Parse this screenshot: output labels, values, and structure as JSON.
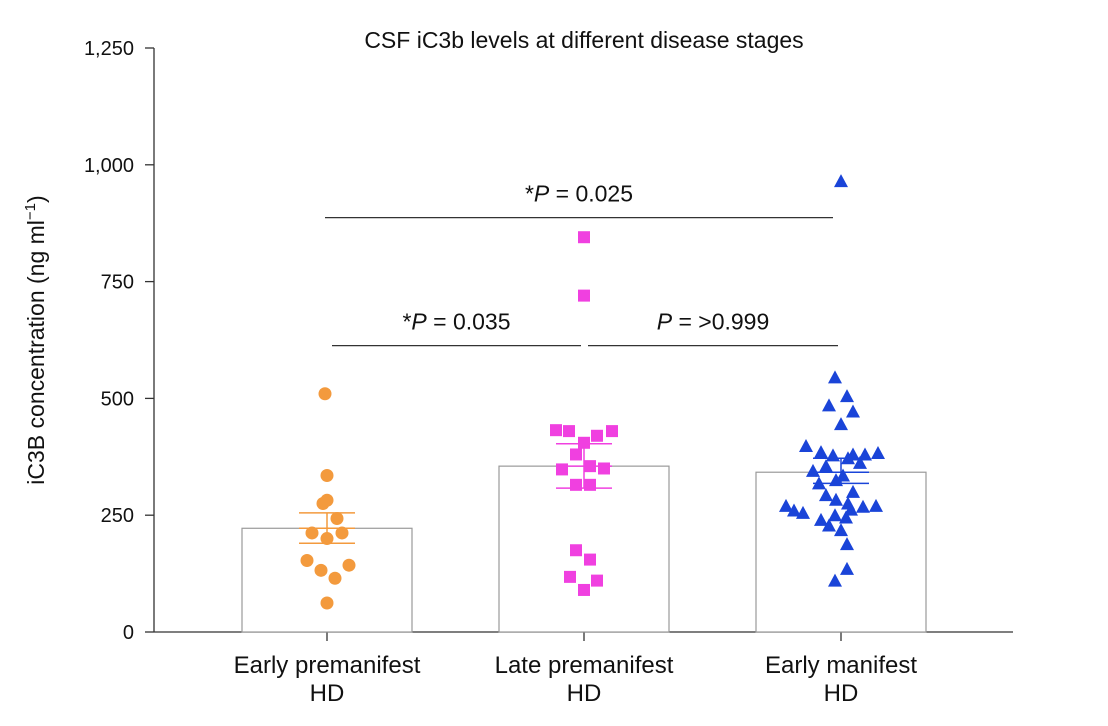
{
  "chart_data": {
    "type": "bar",
    "title": "CSF iC3b levels at different disease stages",
    "ylabel": "iC3B concentration (ng ml",
    "ylabel_superscript": "−1",
    "ylabel_suffix": ")",
    "ylim": [
      0,
      1250
    ],
    "yticks": [
      {
        "value": 0,
        "label": "0"
      },
      {
        "value": 250,
        "label": "250"
      },
      {
        "value": 500,
        "label": "500"
      },
      {
        "value": 750,
        "label": "750"
      },
      {
        "value": 1000,
        "label": "1,000"
      },
      {
        "value": 1250,
        "label": "1,250"
      }
    ],
    "categories": [
      {
        "line1": "Early premanifest",
        "line2": "HD"
      },
      {
        "line1": "Late premanifest",
        "line2": "HD"
      },
      {
        "line1": "Early manifest",
        "line2": "HD"
      }
    ],
    "series": [
      {
        "name": "Early premanifest HD",
        "marker": "circle",
        "color": "#F39A3D",
        "mean": 222,
        "sem": [
          190,
          255
        ],
        "points": [
          {
            "dx": -0.02,
            "y": 510
          },
          {
            "dx": 0.0,
            "y": 335
          },
          {
            "dx": -0.04,
            "y": 275
          },
          {
            "dx": 0.0,
            "y": 282
          },
          {
            "dx": 0.1,
            "y": 243
          },
          {
            "dx": -0.15,
            "y": 212
          },
          {
            "dx": 0.15,
            "y": 212
          },
          {
            "dx": 0.0,
            "y": 200
          },
          {
            "dx": -0.2,
            "y": 153
          },
          {
            "dx": 0.22,
            "y": 143
          },
          {
            "dx": -0.06,
            "y": 132
          },
          {
            "dx": 0.08,
            "y": 115
          },
          {
            "dx": 0.0,
            "y": 62
          }
        ]
      },
      {
        "name": "Late premanifest HD",
        "marker": "square",
        "color": "#F040E0",
        "mean": 355,
        "sem": [
          308,
          403
        ],
        "points": [
          {
            "dx": 0.0,
            "y": 845
          },
          {
            "dx": 0.0,
            "y": 720
          },
          {
            "dx": -0.28,
            "y": 432
          },
          {
            "dx": -0.15,
            "y": 430
          },
          {
            "dx": 0.28,
            "y": 430
          },
          {
            "dx": 0.13,
            "y": 420
          },
          {
            "dx": 0.0,
            "y": 405
          },
          {
            "dx": -0.08,
            "y": 380
          },
          {
            "dx": -0.22,
            "y": 348
          },
          {
            "dx": 0.06,
            "y": 355
          },
          {
            "dx": 0.2,
            "y": 350
          },
          {
            "dx": -0.08,
            "y": 315
          },
          {
            "dx": 0.06,
            "y": 315
          },
          {
            "dx": -0.08,
            "y": 175
          },
          {
            "dx": 0.06,
            "y": 155
          },
          {
            "dx": -0.14,
            "y": 118
          },
          {
            "dx": 0.13,
            "y": 110
          },
          {
            "dx": 0.0,
            "y": 90
          }
        ]
      },
      {
        "name": "Early manifest HD",
        "marker": "triangle",
        "color": "#1A44D8",
        "mean": 342,
        "sem": [
          318,
          372
        ],
        "points": [
          {
            "dx": 0.0,
            "y": 965
          },
          {
            "dx": -0.06,
            "y": 545
          },
          {
            "dx": 0.06,
            "y": 505
          },
          {
            "dx": -0.12,
            "y": 485
          },
          {
            "dx": 0.12,
            "y": 472
          },
          {
            "dx": 0.0,
            "y": 445
          },
          {
            "dx": -0.35,
            "y": 398
          },
          {
            "dx": -0.2,
            "y": 385
          },
          {
            "dx": -0.08,
            "y": 378
          },
          {
            "dx": 0.12,
            "y": 380
          },
          {
            "dx": 0.24,
            "y": 380
          },
          {
            "dx": 0.37,
            "y": 383
          },
          {
            "dx": 0.07,
            "y": 372
          },
          {
            "dx": 0.19,
            "y": 362
          },
          {
            "dx": -0.28,
            "y": 345
          },
          {
            "dx": -0.15,
            "y": 355
          },
          {
            "dx": 0.02,
            "y": 335
          },
          {
            "dx": -0.22,
            "y": 318
          },
          {
            "dx": -0.05,
            "y": 325
          },
          {
            "dx": -0.15,
            "y": 293
          },
          {
            "dx": 0.12,
            "y": 300
          },
          {
            "dx": -0.05,
            "y": 283
          },
          {
            "dx": 0.07,
            "y": 275
          },
          {
            "dx": -0.55,
            "y": 270
          },
          {
            "dx": -0.47,
            "y": 260
          },
          {
            "dx": -0.38,
            "y": 255
          },
          {
            "dx": 0.1,
            "y": 262
          },
          {
            "dx": 0.22,
            "y": 268
          },
          {
            "dx": 0.35,
            "y": 270
          },
          {
            "dx": -0.06,
            "y": 250
          },
          {
            "dx": 0.05,
            "y": 245
          },
          {
            "dx": -0.2,
            "y": 240
          },
          {
            "dx": -0.12,
            "y": 228
          },
          {
            "dx": 0.0,
            "y": 218
          },
          {
            "dx": 0.06,
            "y": 188
          },
          {
            "dx": 0.06,
            "y": 135
          },
          {
            "dx": -0.06,
            "y": 110
          }
        ]
      }
    ],
    "significance": [
      {
        "label_star": "*",
        "label_p": "P",
        "label_rest": " = 0.025",
        "from": 0,
        "to": 2,
        "y": 887,
        "inset_from": -0.02,
        "inset_to": -0.08
      },
      {
        "label_star": "*",
        "label_p": "P",
        "label_rest": " = 0.035",
        "from": 0,
        "to": 1,
        "y": 613,
        "inset_from": 0.05,
        "inset_to": -0.03
      },
      {
        "label_star": "",
        "label_p": "P",
        "label_rest": " = >0.999",
        "from": 1,
        "to": 2,
        "y": 613,
        "inset_from": 0.04,
        "inset_to": -0.03
      }
    ]
  }
}
